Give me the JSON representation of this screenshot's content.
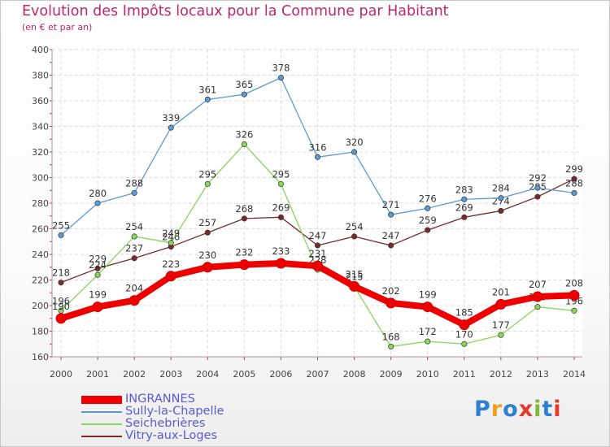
{
  "chart_data": {
    "type": "line",
    "title": "Evolution des Impôts locaux pour la Commune par Habitant",
    "subtitle": "(en € et par an)",
    "xlabel": "",
    "ylabel": "",
    "x": [
      2000,
      2001,
      2002,
      2003,
      2004,
      2005,
      2006,
      2007,
      2008,
      2009,
      2010,
      2011,
      2012,
      2013,
      2014
    ],
    "ylim": [
      160,
      400
    ],
    "yticks": [
      160,
      180,
      200,
      220,
      240,
      260,
      280,
      300,
      320,
      340,
      360,
      380,
      400
    ],
    "grid": true,
    "legend_position": "bottom-left",
    "series": [
      {
        "name": "INGRANNES",
        "color": "#ee0000",
        "values": [
          190,
          199,
          204,
          223,
          230,
          232,
          233,
          231,
          215,
          202,
          199,
          185,
          201,
          207,
          208
        ]
      },
      {
        "name": "Sully-la-Chapelle",
        "color": "#5b9bd5",
        "values": [
          255,
          280,
          288,
          339,
          361,
          365,
          378,
          316,
          320,
          271,
          276,
          283,
          284,
          292,
          288
        ]
      },
      {
        "name": "Seichebrières",
        "color": "#88d65b",
        "values": [
          196,
          224,
          254,
          249,
          295,
          326,
          295,
          228,
          215,
          168,
          172,
          170,
          177,
          199,
          196
        ]
      },
      {
        "name": "Vitry-aux-Loges",
        "color": "#7a2a2a",
        "values": [
          218,
          229,
          237,
          246,
          257,
          268,
          269,
          247,
          254,
          247,
          259,
          269,
          274,
          285,
          299
        ]
      }
    ]
  },
  "brand": {
    "letters": [
      "P",
      "r",
      "o",
      "x",
      "i",
      "t",
      "i"
    ]
  }
}
